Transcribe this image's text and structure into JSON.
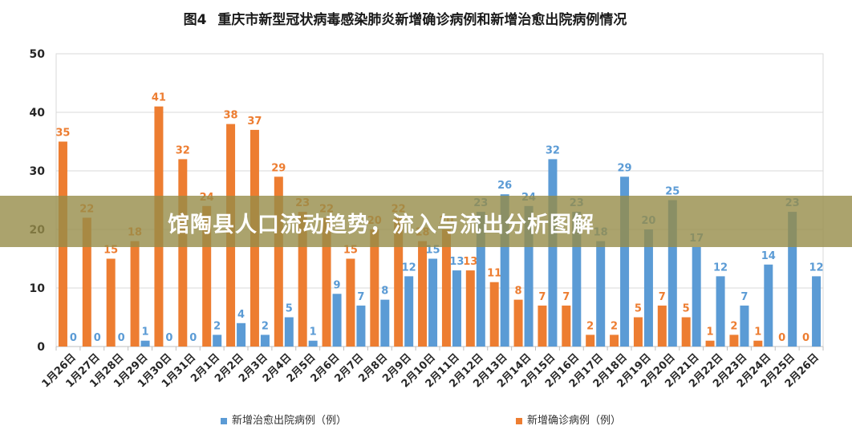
{
  "chart_data": {
    "type": "bar",
    "figure_label": "图4",
    "title": "重庆市新型冠状病毒感染肺炎新增确诊病例和新增治愈出院病例情况",
    "categories": [
      "1月26日",
      "1月27日",
      "1月28日",
      "1月29日",
      "1月30日",
      "1月31日",
      "2月1日",
      "2月2日",
      "2月3日",
      "2月4日",
      "2月5日",
      "2月6日",
      "2月7日",
      "2月8日",
      "2月9日",
      "2月10日",
      "2月11日",
      "2月12日",
      "2月13日",
      "2月14日",
      "2月15日",
      "2月16日",
      "2月17日",
      "2月18日",
      "2月19日",
      "2月20日",
      "2月21日",
      "2月22日",
      "2月23日",
      "2月24日",
      "2月25日",
      "2月26日"
    ],
    "series": [
      {
        "name": "新增治愈出院病例（例）",
        "color": "#5b9bd5",
        "values": [
          0,
          0,
          0,
          1,
          0,
          0,
          2,
          4,
          2,
          5,
          1,
          9,
          7,
          8,
          12,
          15,
          13,
          23,
          26,
          24,
          32,
          23,
          18,
          29,
          20,
          25,
          17,
          12,
          7,
          14,
          23,
          12
        ]
      },
      {
        "name": "新增确诊病例（例）",
        "color": "#ed7d31",
        "values": [
          35,
          22,
          15,
          18,
          41,
          32,
          24,
          38,
          37,
          29,
          23,
          22,
          15,
          20,
          22,
          18,
          20,
          13,
          11,
          8,
          7,
          7,
          2,
          2,
          5,
          7,
          5,
          1,
          2,
          1,
          0,
          0
        ]
      }
    ],
    "ylim": [
      0,
      50
    ],
    "yticks": [
      0,
      10,
      20,
      30,
      40,
      50
    ],
    "grid": true,
    "legend_position": "bottom"
  },
  "banner": {
    "text": "馆陶县人口流动趋势，流入与流出分析图解"
  }
}
